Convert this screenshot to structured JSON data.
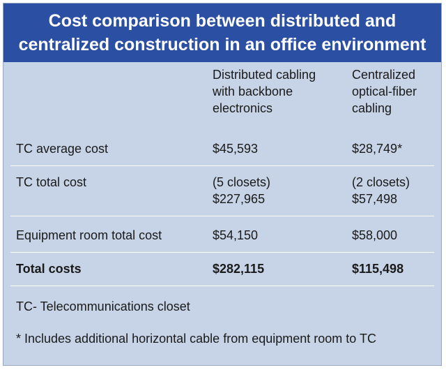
{
  "title": {
    "line1": "Cost comparison between distributed and",
    "line2": "centralized construction in an office environment"
  },
  "columns": {
    "col1": [
      "Distributed cabling",
      "with backbone",
      "electronics"
    ],
    "col2": [
      "Centralized",
      "optical-fiber",
      "cabling"
    ]
  },
  "rows": [
    {
      "label": "TC average cost",
      "col1": [
        "$45,593"
      ],
      "col2": [
        "$28,749*"
      ]
    },
    {
      "label": "TC total cost",
      "col1": [
        "(5 closets)",
        "$227,965"
      ],
      "col2": [
        "(2 closets)",
        "$57,498"
      ]
    },
    {
      "label": "Equipment room total cost",
      "col1": [
        "$54,150"
      ],
      "col2": [
        "$58,000"
      ]
    },
    {
      "label": "Total costs",
      "col1": [
        "$282,115"
      ],
      "col2": [
        "$115,498"
      ]
    }
  ],
  "notes": {
    "tc": "TC- Telecommunications closet",
    "footnote": "* Includes additional horizontal cable from equipment room to TC"
  },
  "colors": {
    "title_bg": "#2a4fa3",
    "panel_bg": "#c7d3e6"
  }
}
